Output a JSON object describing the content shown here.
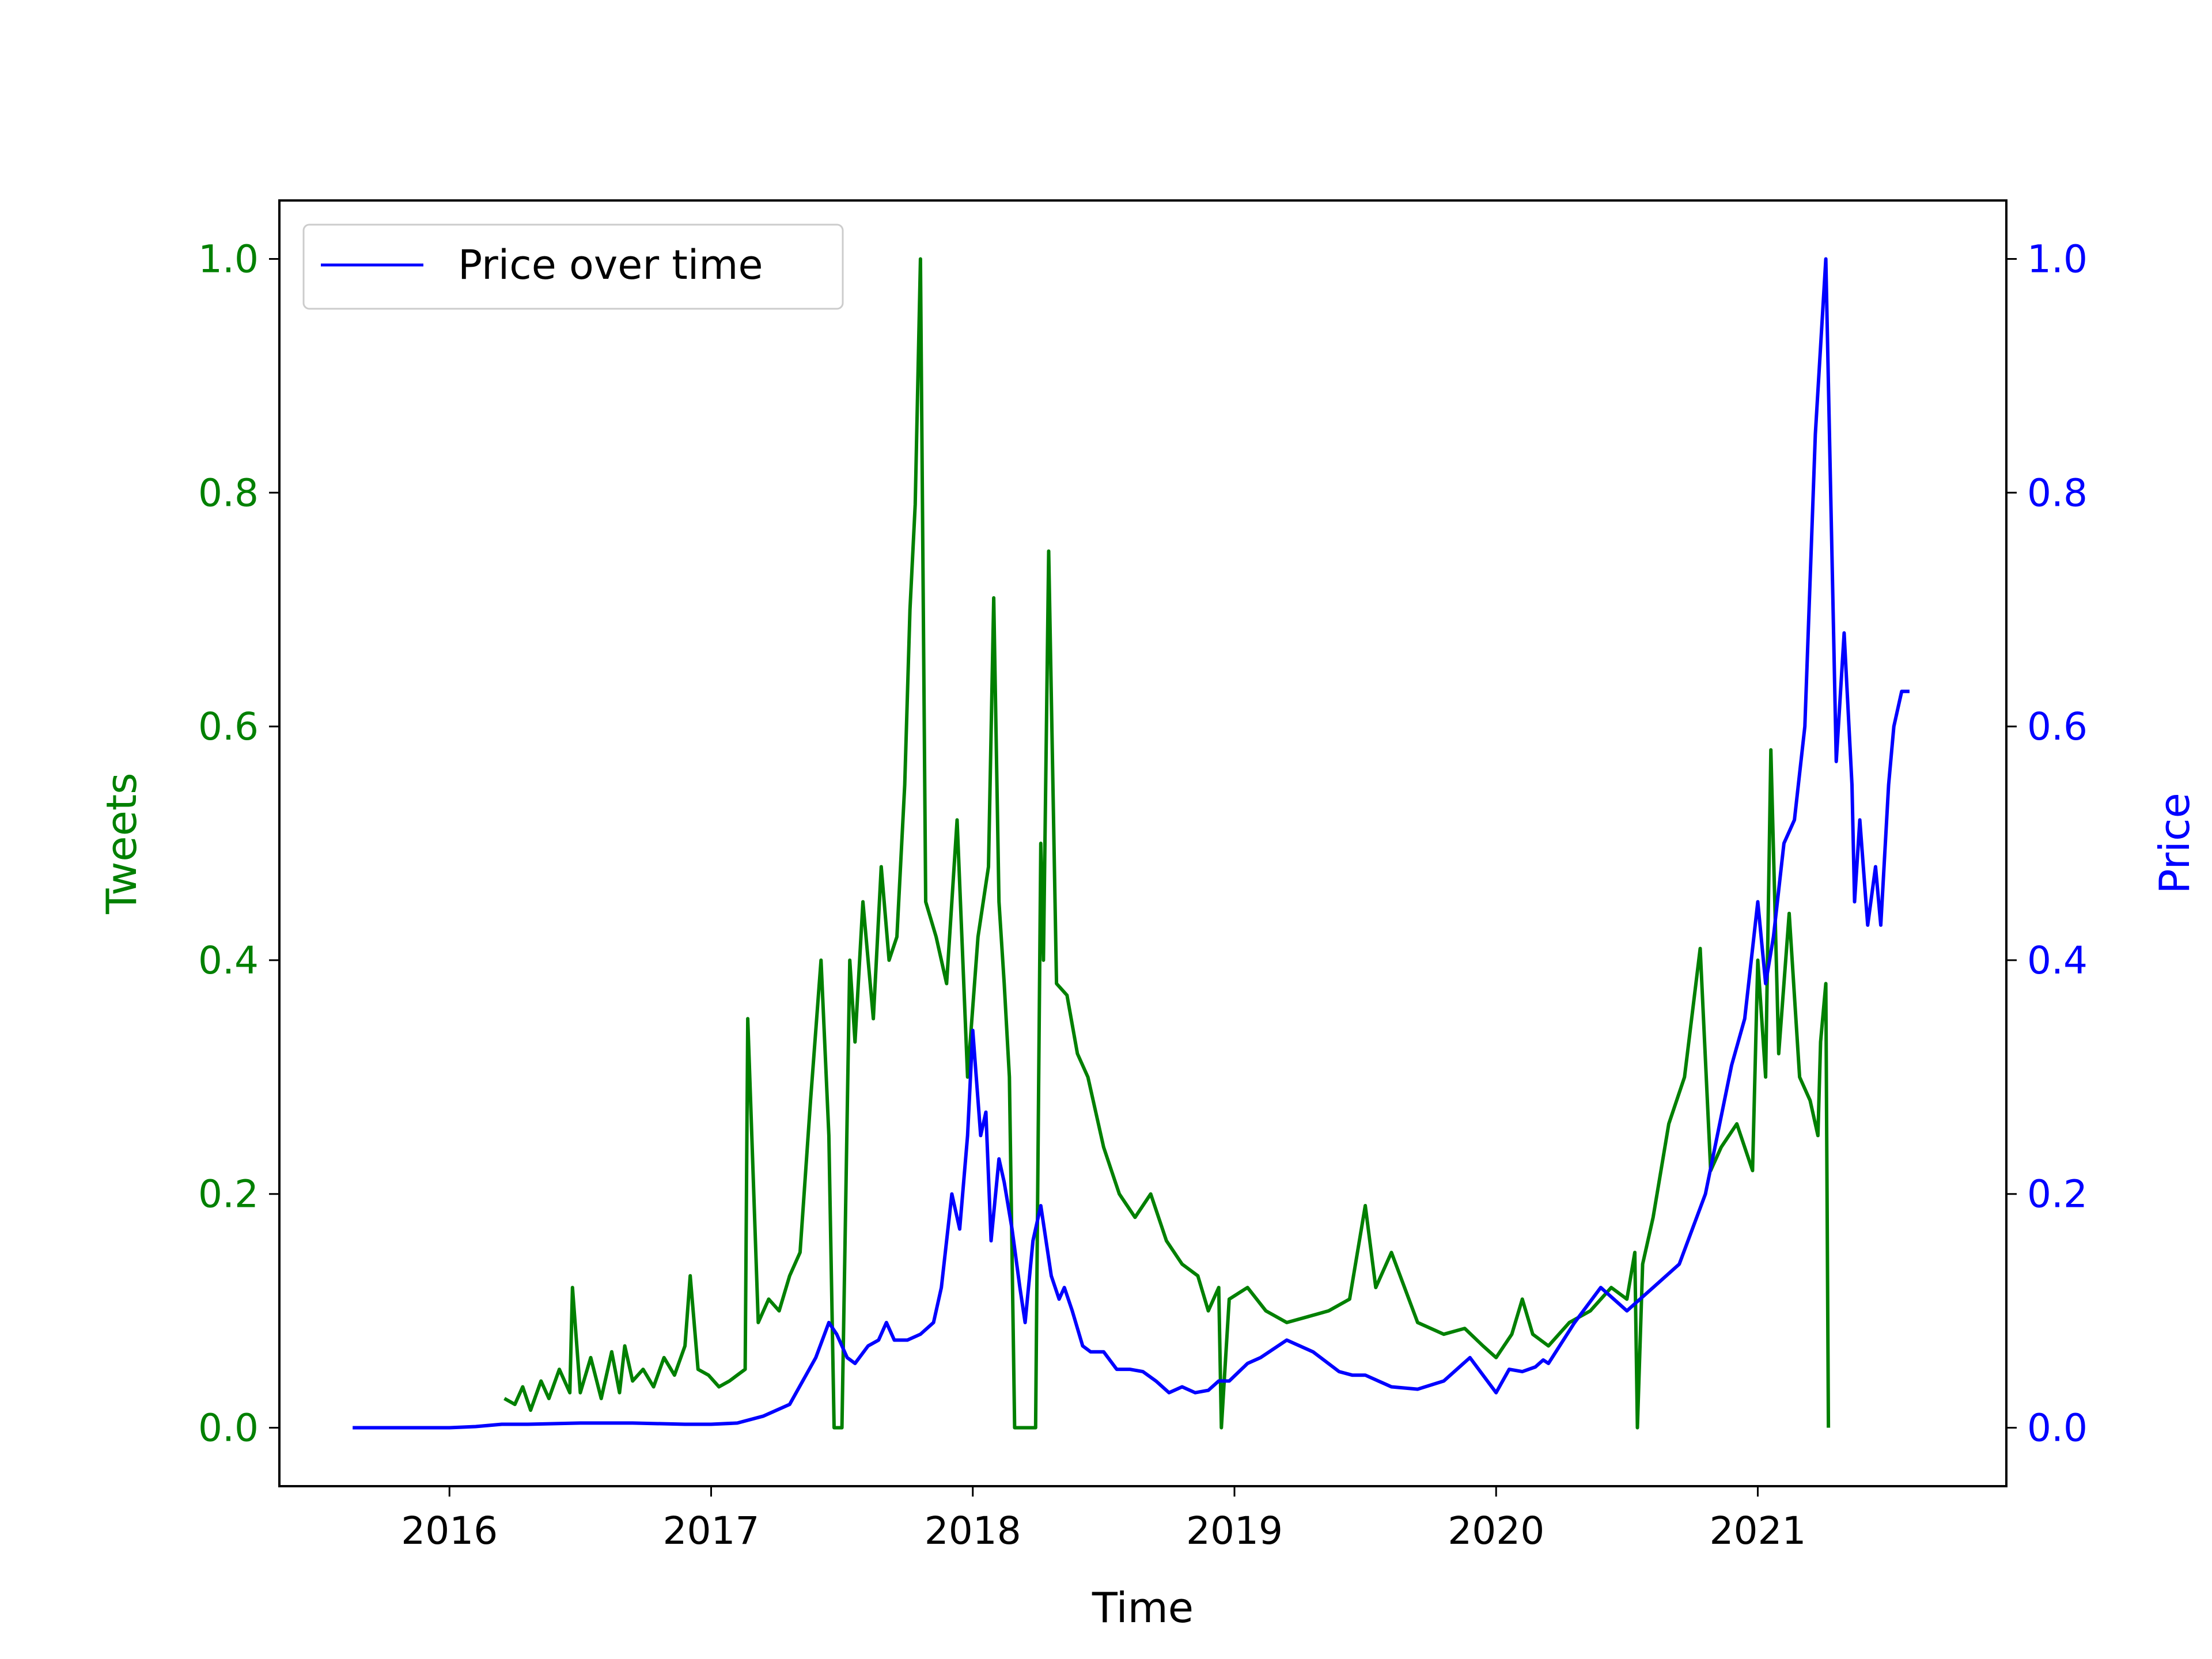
{
  "chart_data": {
    "type": "line",
    "title": "",
    "xlabel": "Time",
    "ylabel_left": "Tweets",
    "ylabel_right": "Price",
    "xlim": [
      2015.35,
      2021.95
    ],
    "ylim_left": [
      -0.05,
      1.05
    ],
    "ylim_right": [
      -0.05,
      1.05
    ],
    "x_ticks": [
      2016,
      2017,
      2018,
      2019,
      2020,
      2021
    ],
    "x_tick_labels": [
      "2016",
      "2017",
      "2018",
      "2019",
      "2020",
      "2021"
    ],
    "y_ticks_left": [
      0.0,
      0.2,
      0.4,
      0.6,
      0.8,
      1.0
    ],
    "y_tick_labels_left": [
      "0.0",
      "0.2",
      "0.4",
      "0.6",
      "0.8",
      "1.0"
    ],
    "y_ticks_right": [
      0.0,
      0.2,
      0.4,
      0.6,
      0.8,
      1.0
    ],
    "y_tick_labels_right": [
      "0.0",
      "0.2",
      "0.4",
      "0.6",
      "0.8",
      "1.0"
    ],
    "legend": {
      "position": "upper-left",
      "entries": [
        "Price over time"
      ]
    },
    "grid": false,
    "colors": {
      "tweets": "#008000",
      "price": "#0000ff",
      "axis": "#000000"
    },
    "series": [
      {
        "name": "Tweets",
        "axis": "left",
        "color": "#008000",
        "x": [
          2016.21,
          2016.25,
          2016.28,
          2016.31,
          2016.35,
          2016.38,
          2016.42,
          2016.46,
          2016.47,
          2016.5,
          2016.54,
          2016.58,
          2016.62,
          2016.65,
          2016.67,
          2016.7,
          2016.74,
          2016.78,
          2016.82,
          2016.86,
          2016.9,
          2016.92,
          2016.95,
          2016.99,
          2017.03,
          2017.07,
          2017.1,
          2017.13,
          2017.14,
          2017.18,
          2017.22,
          2017.26,
          2017.3,
          2017.34,
          2017.38,
          2017.42,
          2017.45,
          2017.47,
          2017.48,
          2017.49,
          2017.5,
          2017.53,
          2017.55,
          2017.58,
          2017.62,
          2017.65,
          2017.68,
          2017.71,
          2017.74,
          2017.76,
          2017.78,
          2017.8,
          2017.82,
          2017.86,
          2017.9,
          2017.94,
          2017.98,
          2018.02,
          2018.06,
          2018.08,
          2018.1,
          2018.12,
          2018.14,
          2018.16,
          2018.17,
          2018.2,
          2018.23,
          2018.24,
          2018.26,
          2018.27,
          2018.29,
          2018.32,
          2018.36,
          2018.4,
          2018.44,
          2018.5,
          2018.56,
          2018.62,
          2018.68,
          2018.74,
          2018.8,
          2018.86,
          2018.9,
          2018.94,
          2018.95,
          2018.98,
          2019.05,
          2019.12,
          2019.2,
          2019.28,
          2019.36,
          2019.44,
          2019.5,
          2019.54,
          2019.6,
          2019.7,
          2019.8,
          2019.88,
          2019.95,
          2020.0,
          2020.06,
          2020.1,
          2020.14,
          2020.2,
          2020.28,
          2020.36,
          2020.44,
          2020.5,
          2020.53,
          2020.54,
          2020.56,
          2020.6,
          2020.66,
          2020.72,
          2020.78,
          2020.82,
          2020.86,
          2020.92,
          2020.98,
          2021.0,
          2021.03,
          2021.05,
          2021.08,
          2021.12,
          2021.16,
          2021.2,
          2021.23,
          2021.24,
          2021.26,
          2021.27
        ],
        "values": [
          0.025,
          0.02,
          0.035,
          0.015,
          0.04,
          0.025,
          0.05,
          0.03,
          0.12,
          0.03,
          0.06,
          0.025,
          0.065,
          0.03,
          0.07,
          0.04,
          0.05,
          0.035,
          0.06,
          0.045,
          0.07,
          0.13,
          0.05,
          0.045,
          0.035,
          0.04,
          0.045,
          0.05,
          0.35,
          0.09,
          0.11,
          0.1,
          0.13,
          0.15,
          0.28,
          0.4,
          0.25,
          0.0,
          0.0,
          0.0,
          0.0,
          0.4,
          0.33,
          0.45,
          0.35,
          0.48,
          0.4,
          0.42,
          0.55,
          0.7,
          0.79,
          1.0,
          0.45,
          0.42,
          0.38,
          0.52,
          0.3,
          0.42,
          0.48,
          0.71,
          0.45,
          0.38,
          0.3,
          0.0,
          0.0,
          0.0,
          0.0,
          0.0,
          0.5,
          0.4,
          0.75,
          0.38,
          0.37,
          0.32,
          0.3,
          0.24,
          0.2,
          0.18,
          0.2,
          0.16,
          0.14,
          0.13,
          0.1,
          0.12,
          0.0,
          0.11,
          0.12,
          0.1,
          0.09,
          0.095,
          0.1,
          0.11,
          0.19,
          0.12,
          0.15,
          0.09,
          0.08,
          0.085,
          0.07,
          0.06,
          0.08,
          0.11,
          0.08,
          0.07,
          0.09,
          0.1,
          0.12,
          0.11,
          0.15,
          0.0,
          0.14,
          0.18,
          0.26,
          0.3,
          0.41,
          0.22,
          0.24,
          0.26,
          0.22,
          0.4,
          0.3,
          0.58,
          0.32,
          0.44,
          0.3,
          0.28,
          0.25,
          0.33,
          0.38,
          0.0
        ]
      },
      {
        "name": "Price over time",
        "axis": "right",
        "color": "#0000ff",
        "x": [
          2015.63,
          2015.8,
          2016.0,
          2016.1,
          2016.2,
          2016.3,
          2016.5,
          2016.7,
          2016.9,
          2017.0,
          2017.1,
          2017.2,
          2017.3,
          2017.35,
          2017.4,
          2017.45,
          2017.48,
          2017.52,
          2017.55,
          2017.6,
          2017.64,
          2017.67,
          2017.7,
          2017.75,
          2017.8,
          2017.85,
          2017.88,
          2017.92,
          2017.95,
          2017.98,
          2018.0,
          2018.03,
          2018.05,
          2018.07,
          2018.1,
          2018.12,
          2018.15,
          2018.18,
          2018.2,
          2018.23,
          2018.26,
          2018.3,
          2018.33,
          2018.35,
          2018.38,
          2018.42,
          2018.45,
          2018.5,
          2018.55,
          2018.6,
          2018.65,
          2018.7,
          2018.75,
          2018.8,
          2018.85,
          2018.9,
          2018.94,
          2018.98,
          2019.05,
          2019.1,
          2019.2,
          2019.3,
          2019.4,
          2019.45,
          2019.5,
          2019.55,
          2019.6,
          2019.7,
          2019.8,
          2019.9,
          2020.0,
          2020.05,
          2020.1,
          2020.15,
          2020.18,
          2020.2,
          2020.3,
          2020.4,
          2020.5,
          2020.55,
          2020.6,
          2020.7,
          2020.8,
          2020.9,
          2020.95,
          2021.0,
          2021.03,
          2021.06,
          2021.1,
          2021.14,
          2021.18,
          2021.22,
          2021.26,
          2021.3,
          2021.33,
          2021.36,
          2021.37,
          2021.39,
          2021.42,
          2021.45,
          2021.47,
          2021.5,
          2021.52,
          2021.55,
          2021.58
        ],
        "values": [
          0.0,
          0.0,
          0.0,
          0.001,
          0.003,
          0.003,
          0.004,
          0.004,
          0.003,
          0.003,
          0.004,
          0.01,
          0.02,
          0.04,
          0.06,
          0.09,
          0.08,
          0.06,
          0.055,
          0.07,
          0.075,
          0.09,
          0.075,
          0.075,
          0.08,
          0.09,
          0.12,
          0.2,
          0.17,
          0.25,
          0.34,
          0.25,
          0.27,
          0.16,
          0.23,
          0.21,
          0.17,
          0.12,
          0.09,
          0.16,
          0.19,
          0.13,
          0.11,
          0.12,
          0.1,
          0.07,
          0.065,
          0.065,
          0.05,
          0.05,
          0.048,
          0.04,
          0.03,
          0.035,
          0.03,
          0.032,
          0.04,
          0.04,
          0.055,
          0.06,
          0.075,
          0.065,
          0.048,
          0.045,
          0.045,
          0.04,
          0.035,
          0.033,
          0.04,
          0.06,
          0.03,
          0.05,
          0.048,
          0.052,
          0.058,
          0.055,
          0.09,
          0.12,
          0.1,
          0.11,
          0.12,
          0.14,
          0.2,
          0.31,
          0.35,
          0.45,
          0.38,
          0.42,
          0.5,
          0.52,
          0.6,
          0.85,
          1.0,
          0.57,
          0.68,
          0.55,
          0.45,
          0.52,
          0.43,
          0.48,
          0.43,
          0.55,
          0.6,
          0.63,
          0.63
        ]
      }
    ]
  }
}
